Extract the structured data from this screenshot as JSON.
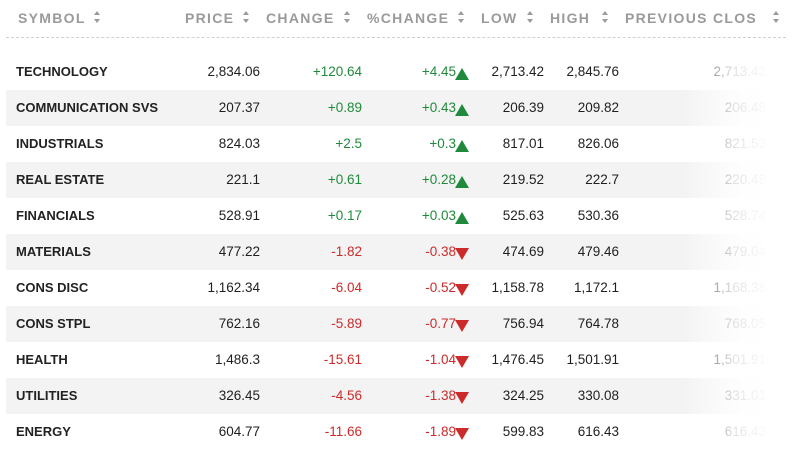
{
  "columns": [
    {
      "key": "symbol",
      "label": "SYMBOL"
    },
    {
      "key": "price",
      "label": "PRICE"
    },
    {
      "key": "change",
      "label": "CHANGE"
    },
    {
      "key": "pct_change",
      "label": "%CHANGE"
    },
    {
      "key": "low",
      "label": "LOW"
    },
    {
      "key": "high",
      "label": "HIGH"
    },
    {
      "key": "prev_close",
      "label": "PREVIOUS CLOS"
    }
  ],
  "colors": {
    "positive": "#208a3c",
    "negative": "#cc2b2b",
    "header": "#9a9a9a"
  },
  "rows": [
    {
      "symbol": "TECHNOLOGY",
      "price": "2,834.06",
      "change": "+120.64",
      "pct_change": "+4.45",
      "direction": "up",
      "low": "2,713.42",
      "high": "2,845.76",
      "prev_close": "2,713.42"
    },
    {
      "symbol": "COMMUNICATION SVS",
      "price": "207.37",
      "change": "+0.89",
      "pct_change": "+0.43",
      "direction": "up",
      "low": "206.39",
      "high": "209.82",
      "prev_close": "206.48"
    },
    {
      "symbol": "INDUSTRIALS",
      "price": "824.03",
      "change": "+2.5",
      "pct_change": "+0.3",
      "direction": "up",
      "low": "817.01",
      "high": "826.06",
      "prev_close": "821.53"
    },
    {
      "symbol": "REAL ESTATE",
      "price": "221.1",
      "change": "+0.61",
      "pct_change": "+0.28",
      "direction": "up",
      "low": "219.52",
      "high": "222.7",
      "prev_close": "220.49"
    },
    {
      "symbol": "FINANCIALS",
      "price": "528.91",
      "change": "+0.17",
      "pct_change": "+0.03",
      "direction": "up",
      "low": "525.63",
      "high": "530.36",
      "prev_close": "528.74"
    },
    {
      "symbol": "MATERIALS",
      "price": "477.22",
      "change": "-1.82",
      "pct_change": "-0.38",
      "direction": "down",
      "low": "474.69",
      "high": "479.46",
      "prev_close": "479.04"
    },
    {
      "symbol": "CONS DISC",
      "price": "1,162.34",
      "change": "-6.04",
      "pct_change": "-0.52",
      "direction": "down",
      "low": "1,158.78",
      "high": "1,172.1",
      "prev_close": "1,168.38"
    },
    {
      "symbol": "CONS STPL",
      "price": "762.16",
      "change": "-5.89",
      "pct_change": "-0.77",
      "direction": "down",
      "low": "756.94",
      "high": "764.78",
      "prev_close": "768.05"
    },
    {
      "symbol": "HEALTH",
      "price": "1,486.3",
      "change": "-15.61",
      "pct_change": "-1.04",
      "direction": "down",
      "low": "1,476.45",
      "high": "1,501.91",
      "prev_close": "1,501.91"
    },
    {
      "symbol": "UTILITIES",
      "price": "326.45",
      "change": "-4.56",
      "pct_change": "-1.38",
      "direction": "down",
      "low": "324.25",
      "high": "330.08",
      "prev_close": "331.01"
    },
    {
      "symbol": "ENERGY",
      "price": "604.77",
      "change": "-11.66",
      "pct_change": "-1.89",
      "direction": "down",
      "low": "599.83",
      "high": "616.43",
      "prev_close": "616.43"
    }
  ]
}
